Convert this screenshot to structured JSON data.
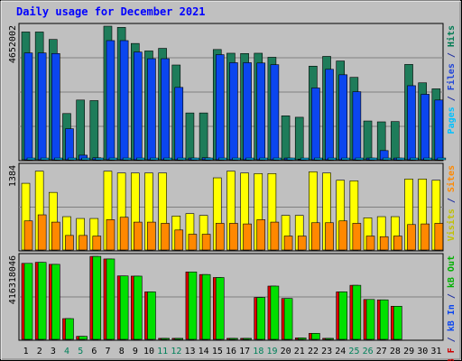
{
  "chart_data": [
    {
      "type": "bar",
      "title": "Daily usage for December 2021",
      "ymax_label": "4652002",
      "ylabel_parts": [
        {
          "text": "Pages",
          "color": "#00c0ff"
        },
        {
          "text": " / ",
          "color": "#1f2f9f"
        },
        {
          "text": "Files",
          "color": "#1f44d8"
        },
        {
          "text": " / ",
          "color": "#1f2f9f"
        },
        {
          "text": "Hits",
          "color": "#007a52"
        }
      ],
      "ylim": [
        0,
        4652002
      ],
      "series": [
        {
          "name": "Hits",
          "color": "#1e7c5a",
          "values": [
            4450000,
            4450000,
            4190000,
            1610000,
            2080000,
            2060000,
            4652000,
            4610000,
            4050000,
            3790000,
            3880000,
            3300000,
            1630000,
            1630000,
            3840000,
            3710000,
            3700000,
            3710000,
            3570000,
            1530000,
            1480000,
            3260000,
            3600000,
            3440000,
            2870000,
            1350000,
            1320000,
            1330000,
            3320000,
            2680000,
            2470000
          ]
        },
        {
          "name": "Files",
          "color": "#0b46ef",
          "values": [
            3720000,
            3720000,
            3700000,
            1080000,
            160000,
            70000,
            4150000,
            4150000,
            3750000,
            3520000,
            3520000,
            2520000,
            60000,
            70000,
            3660000,
            3380000,
            3380000,
            3370000,
            3310000,
            60000,
            20000,
            2500000,
            3150000,
            2960000,
            2370000,
            60000,
            320000,
            60000,
            2580000,
            2280000,
            2080000
          ]
        },
        {
          "name": "Pages",
          "color": "#00c0ff",
          "values": [
            60000,
            60000,
            60000,
            60000,
            60000,
            60000,
            60000,
            60000,
            60000,
            60000,
            60000,
            60000,
            60000,
            60000,
            60000,
            60000,
            60000,
            60000,
            60000,
            60000,
            60000,
            60000,
            60000,
            60000,
            60000,
            60000,
            60000,
            60000,
            60000,
            60000,
            60000
          ]
        }
      ]
    },
    {
      "type": "bar",
      "ymax_label": "1384",
      "ylabel_parts": [
        {
          "text": "Visits",
          "color": "#c0c000"
        },
        {
          "text": " / ",
          "color": "#1f2f9f"
        },
        {
          "text": "Sites",
          "color": "#ff8800"
        }
      ],
      "ylim": [
        0,
        1384
      ],
      "series": [
        {
          "name": "Visits",
          "color": "#ffff00",
          "values": [
            1100,
            1300,
            950,
            550,
            520,
            520,
            1300,
            1270,
            1270,
            1270,
            1270,
            560,
            600,
            570,
            1190,
            1300,
            1270,
            1260,
            1260,
            570,
            570,
            1290,
            1270,
            1150,
            1140,
            530,
            550,
            550,
            1170,
            1170,
            1150
          ]
        },
        {
          "name": "Sites",
          "color": "#ff8800",
          "values": [
            480,
            580,
            460,
            240,
            240,
            230,
            500,
            540,
            460,
            460,
            440,
            330,
            260,
            260,
            440,
            440,
            430,
            500,
            460,
            230,
            230,
            450,
            450,
            480,
            440,
            230,
            220,
            230,
            420,
            430,
            440
          ]
        }
      ]
    },
    {
      "type": "bar",
      "ymax_label": "416318046",
      "ylabel_parts": [
        {
          "text": "kB F",
          "color": "#cc0000"
        },
        {
          "text": " / ",
          "color": "#1f2f9f"
        },
        {
          "text": "kB In",
          "color": "#0b46ef"
        },
        {
          "text": " / ",
          "color": "#1f2f9f"
        },
        {
          "text": "kB Out",
          "color": "#00b000"
        }
      ],
      "ylim": [
        0,
        416318046
      ],
      "series": [
        {
          "name": "kB F",
          "color": "#e00000",
          "values": [
            381000000,
            386000000,
            376000000,
            104000000,
            15000000,
            416000000,
            403000000,
            318000000,
            317000000,
            238000000,
            5000000,
            5000000,
            338000000,
            325000000,
            310000000,
            5000000,
            5000000,
            210000000,
            267000000,
            205000000,
            7000000,
            30000000,
            5000000,
            238000000,
            271000000,
            200000000,
            198000000,
            166000000,
            0,
            0,
            0
          ]
        },
        {
          "name": "kB Out",
          "color": "#00e000",
          "values": [
            381000000,
            386000000,
            376000000,
            104000000,
            15000000,
            416000000,
            403000000,
            318000000,
            317000000,
            238000000,
            5000000,
            5000000,
            338000000,
            325000000,
            310000000,
            5000000,
            5000000,
            210000000,
            267000000,
            205000000,
            7000000,
            30000000,
            5000000,
            238000000,
            271000000,
            200000000,
            198000000,
            166000000,
            0,
            0,
            0
          ]
        }
      ]
    }
  ],
  "days": [
    "1",
    "2",
    "3",
    "4",
    "5",
    "6",
    "7",
    "8",
    "9",
    "10",
    "11",
    "12",
    "13",
    "14",
    "15",
    "16",
    "17",
    "18",
    "19",
    "20",
    "21",
    "22",
    "23",
    "24",
    "25",
    "26",
    "27",
    "28",
    "29",
    "30",
    "31"
  ],
  "weekend_days": [
    "4",
    "5",
    "11",
    "12",
    "18",
    "19",
    "25",
    "26"
  ],
  "colors": {
    "frame": "#c0c0c0",
    "weekday": "#000000",
    "weekend": "#00805a",
    "title": "#0000ff"
  }
}
